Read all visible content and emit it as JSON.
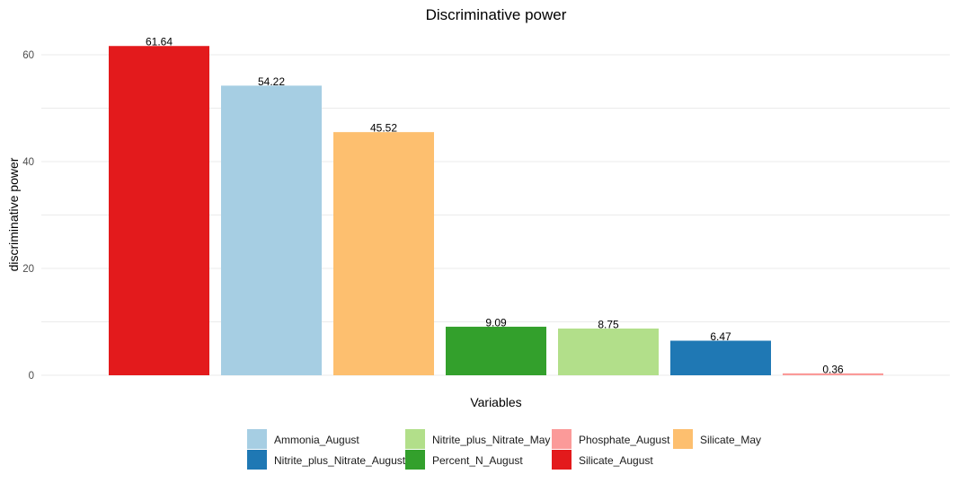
{
  "chart_data": {
    "type": "bar",
    "title": "Discriminative power",
    "xlabel": "Variables",
    "ylabel": "discriminative power",
    "ylim": [
      0,
      65
    ],
    "yticks": [
      0,
      20,
      40,
      60
    ],
    "grid": true,
    "legend_position": "bottom",
    "categories": [
      "Silicate_August",
      "Ammonia_August",
      "Silicate_May",
      "Percent_N_August",
      "Nitrite_plus_Nitrate_May",
      "Nitrite_plus_Nitrate_August",
      "Phosphate_August"
    ],
    "values": [
      61.64,
      54.22,
      45.52,
      9.09,
      8.75,
      6.47,
      0.36
    ],
    "value_labels": [
      "61.64",
      "54.22",
      "45.52",
      "9.09",
      "8.75",
      "6.47",
      "0.36"
    ],
    "colors": [
      "#e31a1c",
      "#a6cee3",
      "#fdbf6f",
      "#33a02c",
      "#b2df8a",
      "#1f78b4",
      "#fb9a99"
    ],
    "legend": [
      {
        "label": "Ammonia_August",
        "color": "#a6cee3"
      },
      {
        "label": "Nitrite_plus_Nitrate_May",
        "color": "#b2df8a"
      },
      {
        "label": "Phosphate_August",
        "color": "#fb9a99"
      },
      {
        "label": "Silicate_May",
        "color": "#fdbf6f"
      },
      {
        "label": "Nitrite_plus_Nitrate_August",
        "color": "#1f78b4"
      },
      {
        "label": "Percent_N_August",
        "color": "#33a02c"
      },
      {
        "label": "Silicate_August",
        "color": "#e31a1c"
      }
    ]
  }
}
